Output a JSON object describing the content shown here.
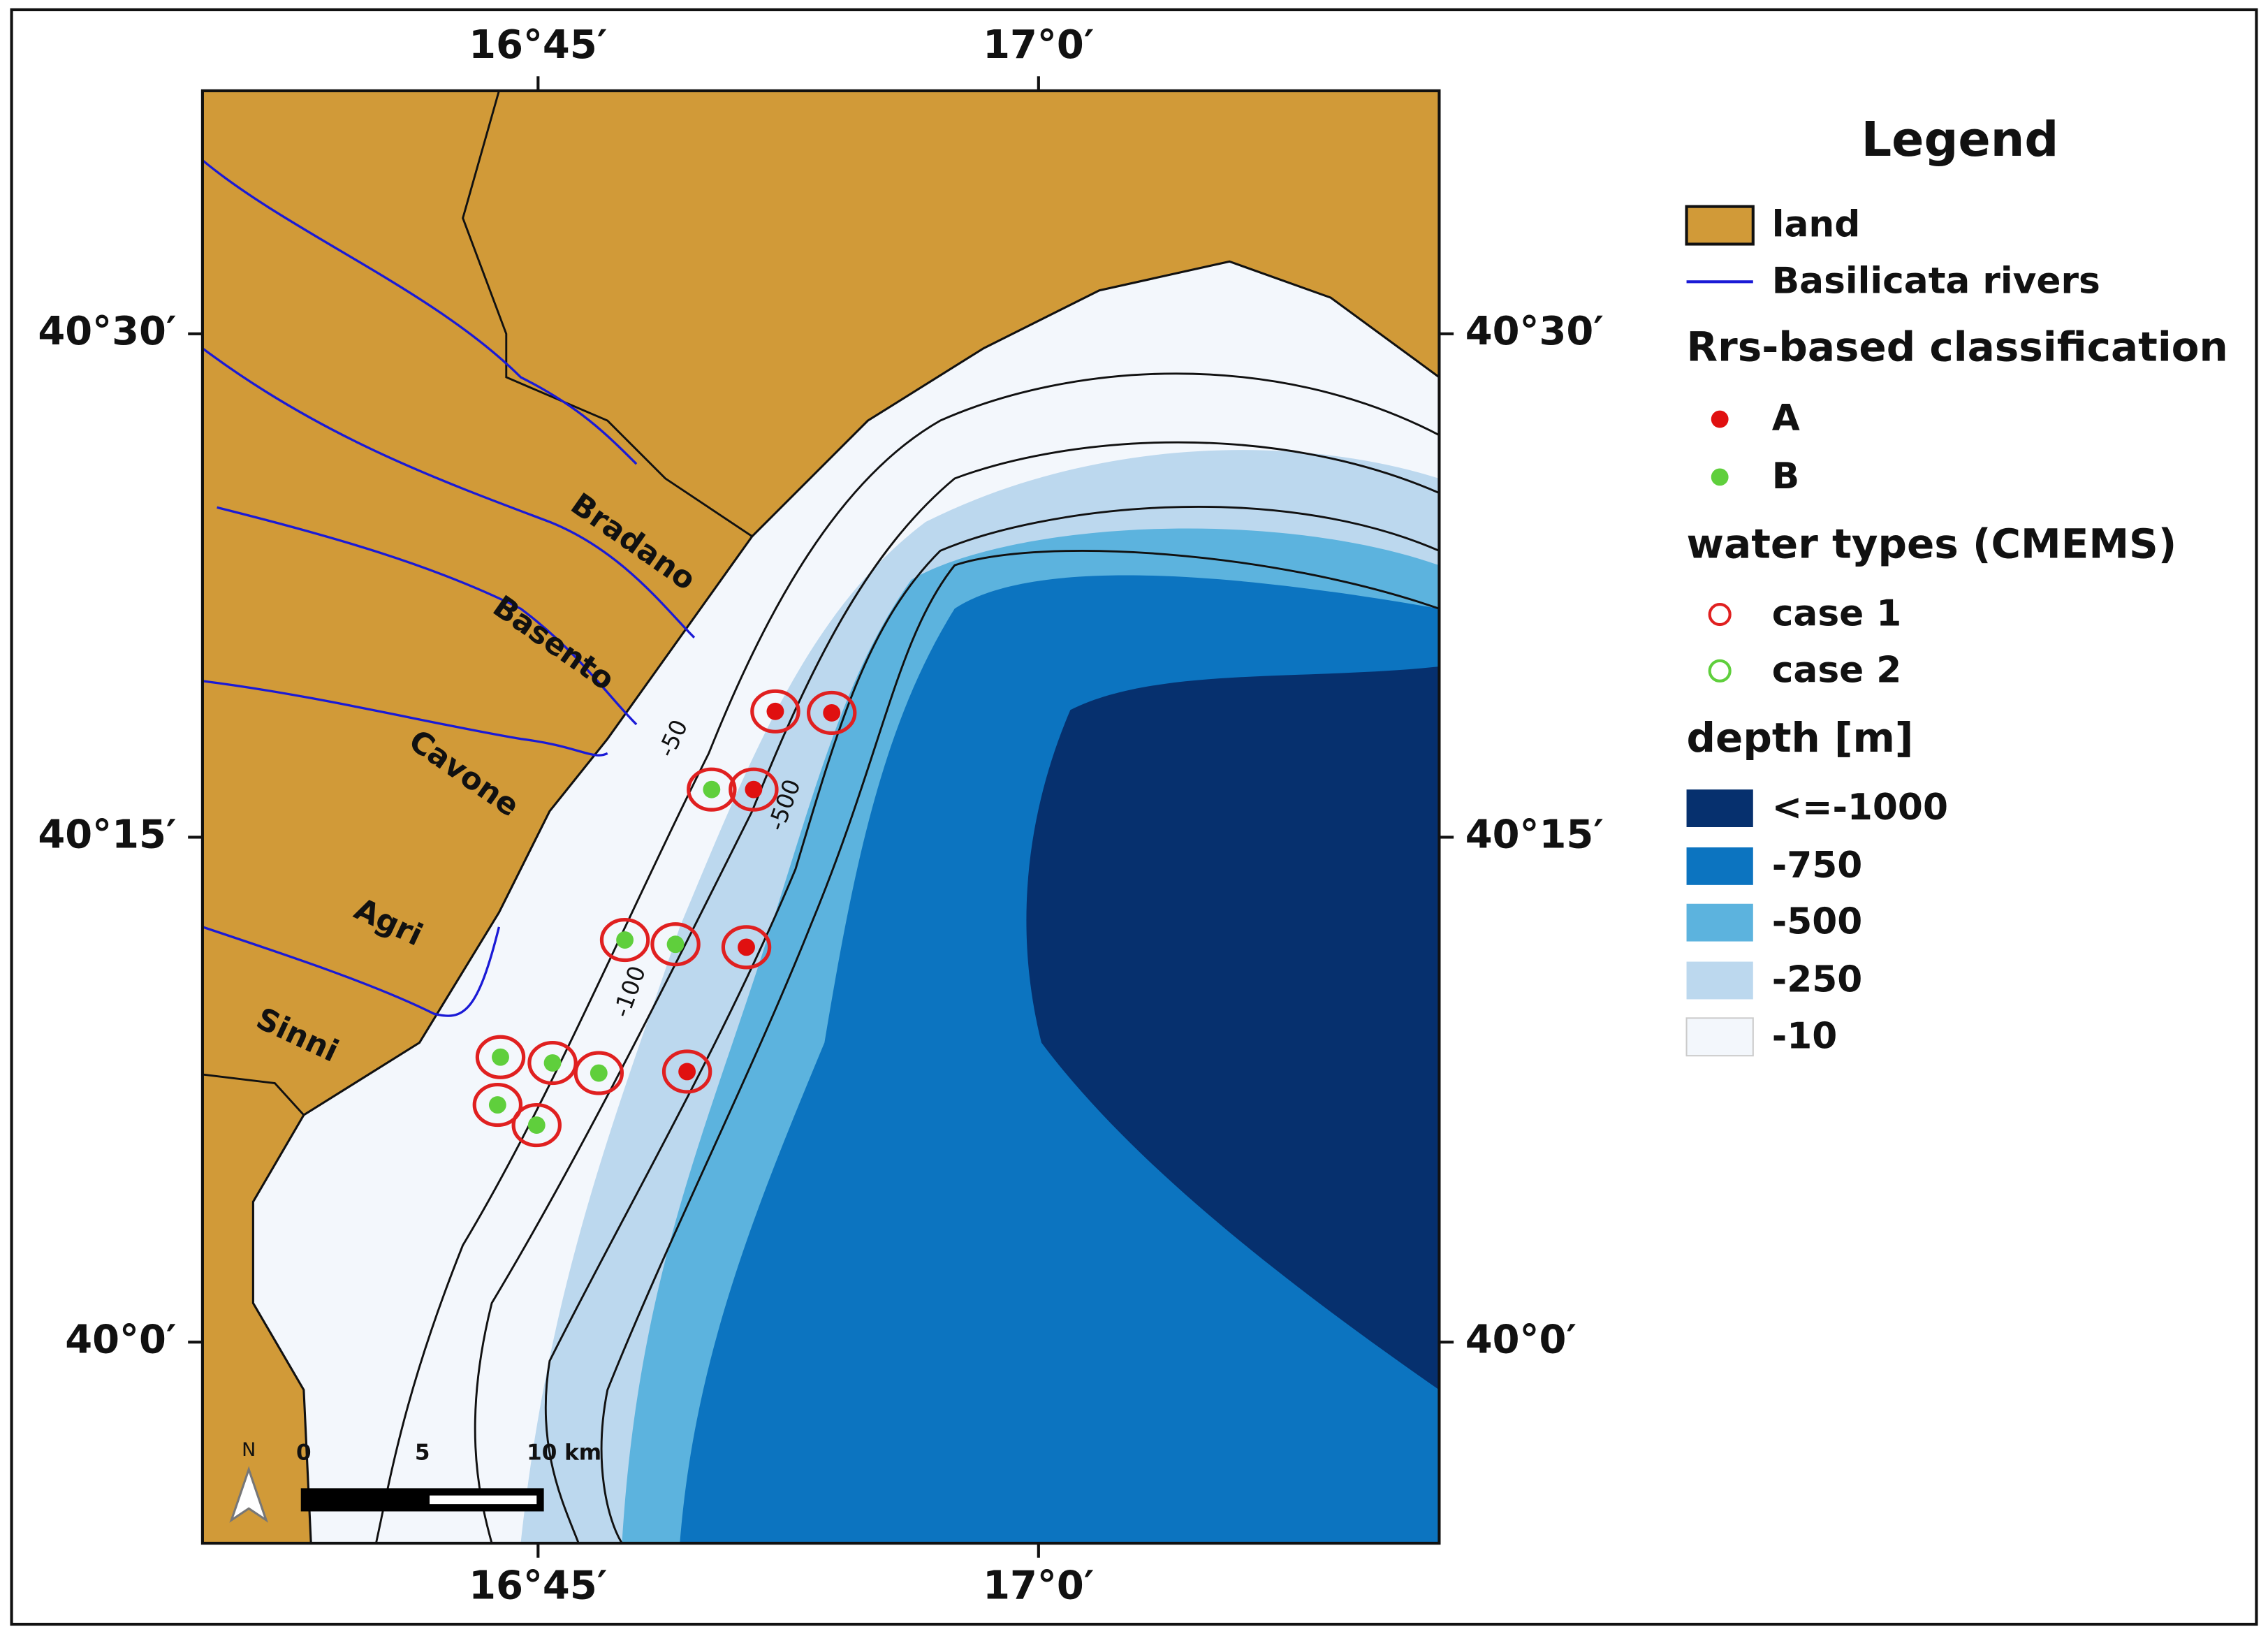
{
  "map": {
    "lon_labels": [
      "16°45′",
      "17°0′"
    ],
    "lat_labels": [
      "40°30′",
      "40°15′",
      "40°0′"
    ],
    "rivers": [
      "Bradano",
      "Basento",
      "Cavone",
      "Agri",
      "Sinni"
    ],
    "contour_labels": [
      "-50",
      "-500",
      "-100"
    ],
    "scale_bar": {
      "north": "N",
      "ticks": [
        "0",
        "5",
        "10 km"
      ]
    }
  },
  "legend": {
    "title": "Legend",
    "land": "land",
    "rivers": "Basilicata rivers",
    "classification": {
      "title": "Rrs-based classification",
      "items": [
        "A",
        "B"
      ]
    },
    "water_types": {
      "title": "water types (CMEMS)",
      "items": [
        "case 1",
        "case 2"
      ]
    },
    "depth": {
      "title": "depth [m]",
      "items": [
        "<=-1000",
        "-750",
        "-500",
        "-250",
        "-10"
      ]
    }
  }
}
